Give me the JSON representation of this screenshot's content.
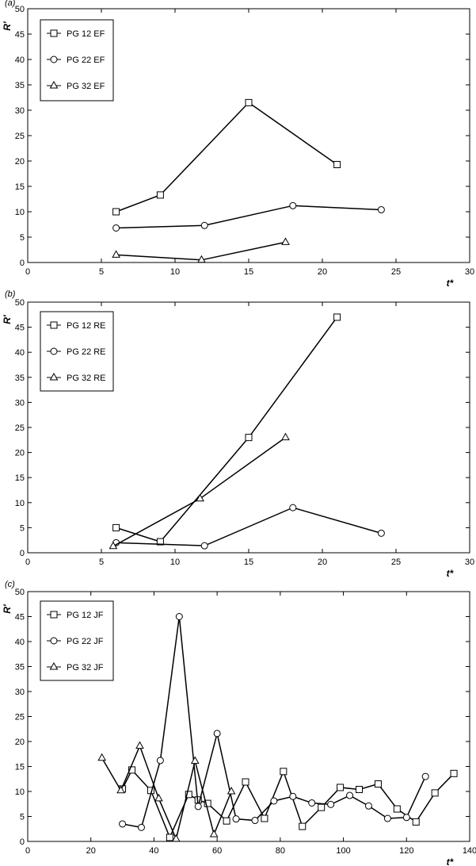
{
  "chart_data": [
    {
      "type": "line",
      "panel_label": "(a)",
      "ylabel": "R′",
      "xlabel": "t*",
      "xlim": [
        0,
        30
      ],
      "ylim": [
        0,
        50
      ],
      "xticks": [
        0,
        5,
        10,
        15,
        20,
        25,
        30
      ],
      "yticks": [
        0,
        5,
        10,
        15,
        20,
        25,
        30,
        35,
        40,
        45,
        50
      ],
      "grid": false,
      "legend_position": "top-left",
      "series": [
        {
          "name": "PG 12 EF",
          "marker": "square",
          "x": [
            6,
            9,
            15,
            21
          ],
          "y": [
            10,
            13.3,
            31.5,
            19.3
          ]
        },
        {
          "name": "PG 22 EF",
          "marker": "circle",
          "x": [
            6,
            12,
            18,
            24
          ],
          "y": [
            6.8,
            7.3,
            11.2,
            10.4
          ]
        },
        {
          "name": "PG 32 EF",
          "marker": "triangle",
          "x": [
            6,
            11.8,
            17.5
          ],
          "y": [
            1.5,
            0.5,
            4
          ]
        }
      ]
    },
    {
      "type": "line",
      "panel_label": "(b)",
      "ylabel": "R′",
      "xlabel": "t*",
      "xlim": [
        0,
        30
      ],
      "ylim": [
        0,
        50
      ],
      "xticks": [
        0,
        5,
        10,
        15,
        20,
        25,
        30
      ],
      "yticks": [
        0,
        5,
        10,
        15,
        20,
        25,
        30,
        35,
        40,
        45,
        50
      ],
      "grid": false,
      "legend_position": "top-left",
      "series": [
        {
          "name": "PG 12 RE",
          "marker": "square",
          "x": [
            6,
            9,
            15,
            21
          ],
          "y": [
            5,
            2.2,
            23,
            47
          ]
        },
        {
          "name": "PG 22 RE",
          "marker": "circle",
          "x": [
            6,
            12,
            18,
            24
          ],
          "y": [
            2,
            1.4,
            9,
            3.9
          ]
        },
        {
          "name": "PG 32 RE",
          "marker": "triangle",
          "x": [
            5.8,
            11.7,
            17.5
          ],
          "y": [
            1.3,
            10.8,
            23
          ]
        }
      ]
    },
    {
      "type": "line",
      "panel_label": "(c)",
      "ylabel": "R′",
      "xlabel": "t*",
      "xlim": [
        0,
        140
      ],
      "ylim": [
        0,
        50
      ],
      "xticks": [
        0,
        20,
        40,
        60,
        80,
        100,
        120,
        140
      ],
      "yticks": [
        0,
        5,
        10,
        15,
        20,
        25,
        30,
        35,
        40,
        45,
        50
      ],
      "grid": false,
      "legend_position": "top-left",
      "series": [
        {
          "name": "PG 12 JF",
          "marker": "square",
          "x": [
            30,
            33,
            39,
            45,
            51,
            54,
            57,
            63,
            69,
            75,
            81,
            87,
            93,
            99,
            105,
            111,
            117,
            123,
            129,
            135
          ],
          "y": [
            10.5,
            14.3,
            10.2,
            0.8,
            9.4,
            8.3,
            7.6,
            4.1,
            11.9,
            4.6,
            14,
            3,
            6.8,
            10.8,
            10.4,
            11.5,
            6.5,
            3.9,
            9.7,
            13.6
          ]
        },
        {
          "name": "PG 22 JF",
          "marker": "circle",
          "x": [
            30,
            36,
            42,
            48,
            54,
            60,
            66,
            72,
            78,
            84,
            90,
            96,
            102,
            108,
            114,
            120,
            126
          ],
          "y": [
            3.5,
            2.8,
            16.2,
            45,
            7,
            21.6,
            4.5,
            4.2,
            8.1,
            9,
            7.7,
            7.4,
            9.2,
            7.1,
            4.6,
            4.8,
            13
          ]
        },
        {
          "name": "PG 32 JF",
          "marker": "triangle",
          "x": [
            23.5,
            29.5,
            35.5,
            41.5,
            47,
            53,
            59,
            64.5
          ],
          "y": [
            16.7,
            10.2,
            19.1,
            8.6,
            0.5,
            16.1,
            1.4,
            10
          ]
        }
      ]
    }
  ]
}
